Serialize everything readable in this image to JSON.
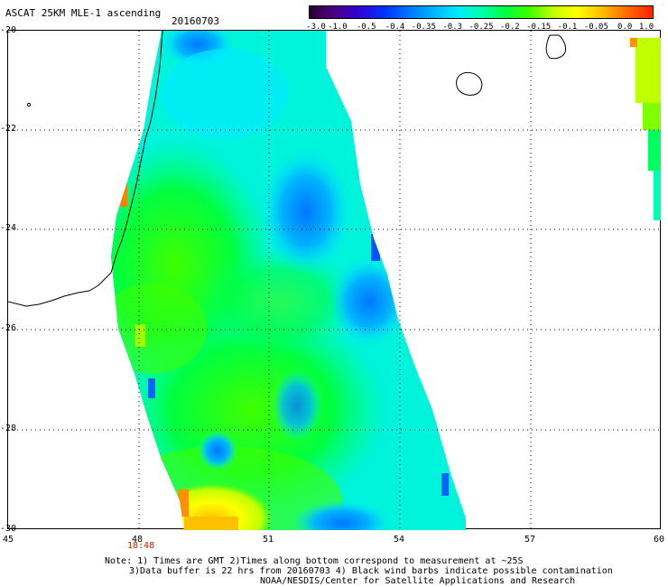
{
  "title": "ASCAT 25KM MLE-1 ascending",
  "date": "20160703",
  "colorbar": {
    "labels": [
      "-3.0",
      "-1.0",
      "-0.5",
      "-0.4",
      "-0.35",
      "-0.3",
      "-0.25",
      "-0.2",
      "-0.15",
      "-0.1",
      "-0.05",
      "0.0",
      "1.0"
    ],
    "colors": [
      "#2a0030",
      "#3300d0",
      "#0077ff",
      "#00eaff",
      "#00ff40",
      "#c0ff00",
      "#ffff00",
      "#ff7000",
      "#ff2000"
    ]
  },
  "map": {
    "lat_range": [
      -30,
      -20
    ],
    "lon_range": [
      45,
      60
    ],
    "lat_ticks": [
      "-20",
      "-22",
      "-24",
      "-26",
      "-28",
      "-30"
    ],
    "lon_ticks": [
      "45",
      "48",
      "51",
      "54",
      "57",
      "60"
    ],
    "time_label": "18:48",
    "features": [
      "Madagascar coastline",
      "Reunion island",
      "Mauritius island",
      "ASCAT swath"
    ]
  },
  "notes": [
    "Note: 1) Times are GMT 2)Times along bottom correspond to measurement at ~25S",
    "3)Data buffer is 22 hrs from 20160703 4) Black wind barbs indicate possible contamination",
    "NOAA/NESDIS/Center for Satellite Applications and Research"
  ]
}
